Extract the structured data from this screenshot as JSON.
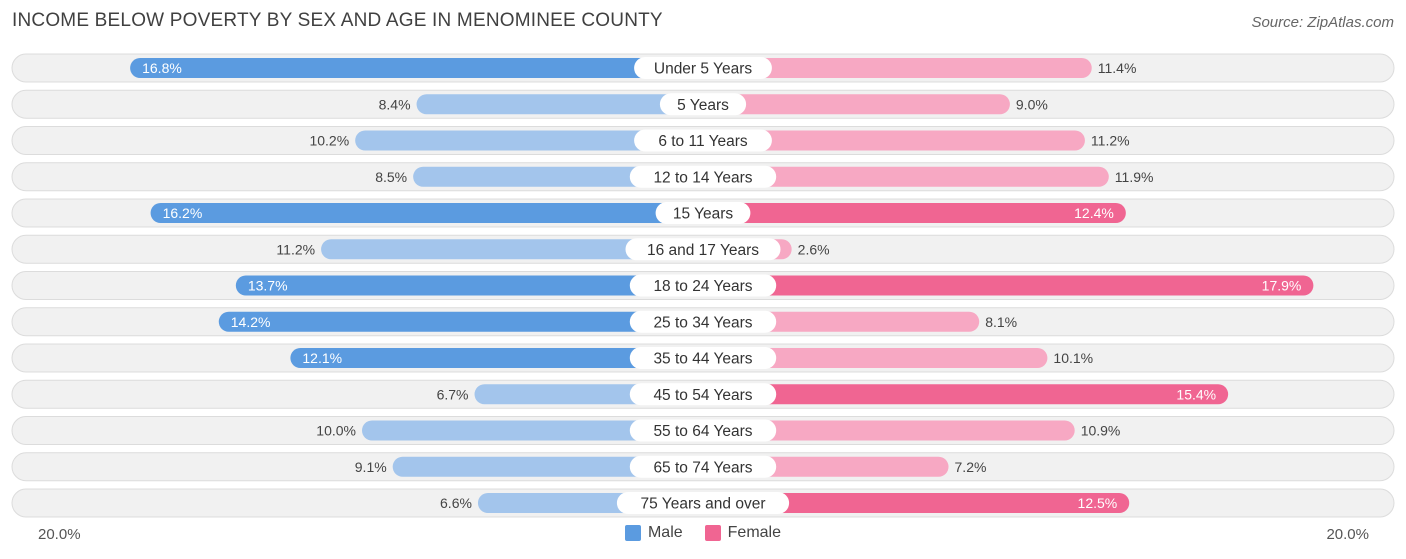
{
  "header": {
    "title": "INCOME BELOW POVERTY BY SEX AND AGE IN MENOMINEE COUNTY",
    "source": "Source: ZipAtlas.com"
  },
  "axis": {
    "left_label": "20.0%",
    "right_label": "20.0%"
  },
  "legend": {
    "male_label": "Male",
    "female_label": "Female"
  },
  "colors": {
    "male_strong": "#5b9be0",
    "male_light": "#a3c5ec",
    "female_strong": "#f06592",
    "female_light": "#f7a8c3",
    "row_bg": "#f1f1f1",
    "row_border": "#dcdcdc"
  },
  "chart_data": {
    "type": "bar",
    "orientation": "horizontal-diverging",
    "title": "INCOME BELOW POVERTY BY SEX AND AGE IN MENOMINEE COUNTY",
    "xlim": [
      -20,
      20
    ],
    "unit": "%",
    "categories": [
      "Under 5 Years",
      "5 Years",
      "6 to 11 Years",
      "12 to 14 Years",
      "15 Years",
      "16 and 17 Years",
      "18 to 24 Years",
      "25 to 34 Years",
      "35 to 44 Years",
      "45 to 54 Years",
      "55 to 64 Years",
      "65 to 74 Years",
      "75 Years and over"
    ],
    "series": [
      {
        "name": "Male",
        "values": [
          16.8,
          8.4,
          10.2,
          8.5,
          16.2,
          11.2,
          13.7,
          14.2,
          12.1,
          6.7,
          10.0,
          9.1,
          6.6
        ],
        "labels": [
          "16.8%",
          "8.4%",
          "10.2%",
          "8.5%",
          "16.2%",
          "11.2%",
          "13.7%",
          "14.2%",
          "12.1%",
          "6.7%",
          "10.0%",
          "9.1%",
          "6.6%"
        ]
      },
      {
        "name": "Female",
        "values": [
          11.4,
          9.0,
          11.2,
          11.9,
          12.4,
          2.6,
          17.9,
          8.1,
          10.1,
          15.4,
          10.9,
          7.2,
          12.5
        ],
        "labels": [
          "11.4%",
          "9.0%",
          "11.2%",
          "11.9%",
          "12.4%",
          "2.6%",
          "17.9%",
          "8.1%",
          "10.1%",
          "15.4%",
          "10.9%",
          "7.2%",
          "12.5%"
        ]
      }
    ],
    "legend_position": "bottom-center"
  }
}
